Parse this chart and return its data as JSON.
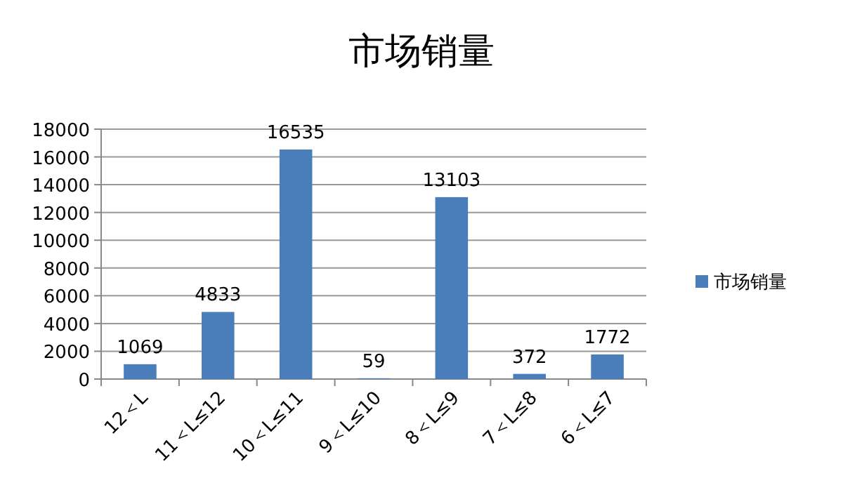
{
  "chart_data": {
    "type": "bar",
    "title": "市场销量",
    "categories": [
      "12＜L",
      "11＜L≤12",
      "10＜L≤11",
      "9＜L≤10",
      "8＜L≤9",
      "7＜L≤8",
      "6＜L≤7"
    ],
    "series": [
      {
        "name": "市场销量",
        "color": "#4a7ebb",
        "values": [
          1069,
          4833,
          16535,
          59,
          13103,
          372,
          1772
        ]
      }
    ],
    "ylim": [
      0,
      18000
    ],
    "yticks": [
      0,
      2000,
      4000,
      6000,
      8000,
      10000,
      12000,
      14000,
      16000,
      18000
    ],
    "grid": "y",
    "legend": "right",
    "data_labels": true
  }
}
